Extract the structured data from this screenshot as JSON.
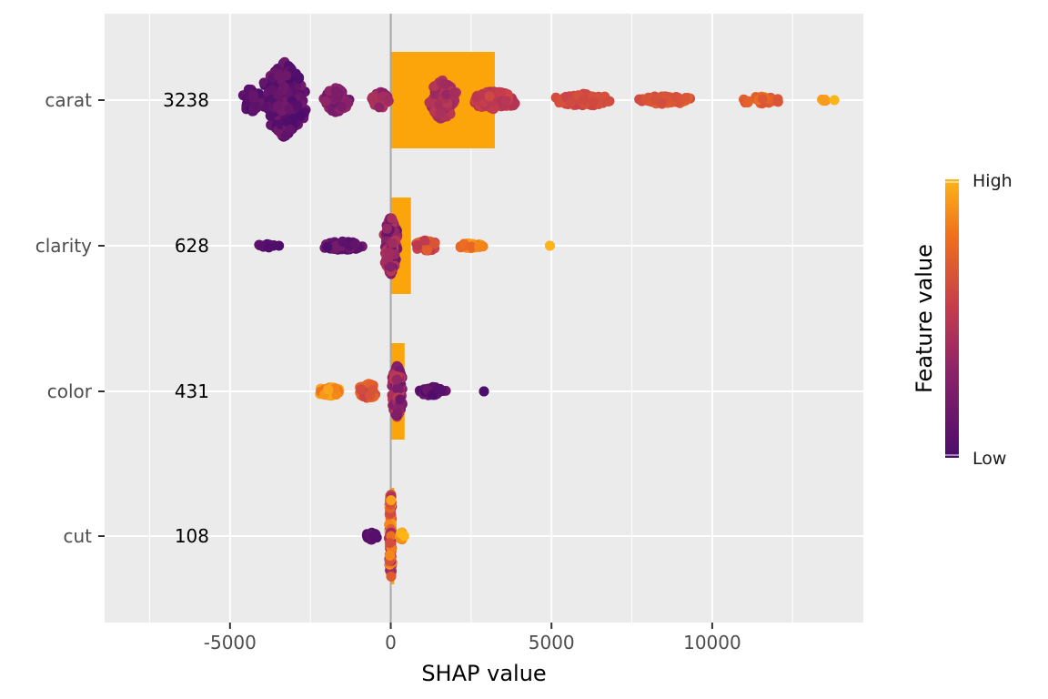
{
  "chart_data": {
    "type": "scatter",
    "subtype": "shap-beeswarm-with-importance-bars",
    "xlabel": "SHAP value",
    "ylabel": "",
    "xlim": [
      -8900,
      14700
    ],
    "x_ticks": [
      -5000,
      0,
      5000,
      10000
    ],
    "x_tick_labels": [
      "-5000",
      "0",
      "5000",
      "10000"
    ],
    "grid": true,
    "features": [
      {
        "name": "carat",
        "importance": 3238,
        "importance_label": "3238",
        "x_min": -4850,
        "x_max": 13800
      },
      {
        "name": "clarity",
        "importance": 628,
        "importance_label": "628",
        "x_min": -4400,
        "x_max": 4950
      },
      {
        "name": "color",
        "importance": 431,
        "importance_label": "431",
        "x_min": -2500,
        "x_max": 2900
      },
      {
        "name": "cut",
        "importance": 108,
        "importance_label": "108",
        "x_min": -950,
        "x_max": 420
      }
    ],
    "legend": {
      "title": "Feature value",
      "high_label": "High",
      "low_label": "Low",
      "placement": "right",
      "colormap": "inferno"
    },
    "colors": {
      "bar": "#fca50a",
      "panel": "#ebebeb",
      "grid": "#ffffff",
      "zero_line": "#a6a6a6",
      "low": "#4b0c6b",
      "mid": "#c73e4c",
      "high": "#fcb519"
    }
  }
}
